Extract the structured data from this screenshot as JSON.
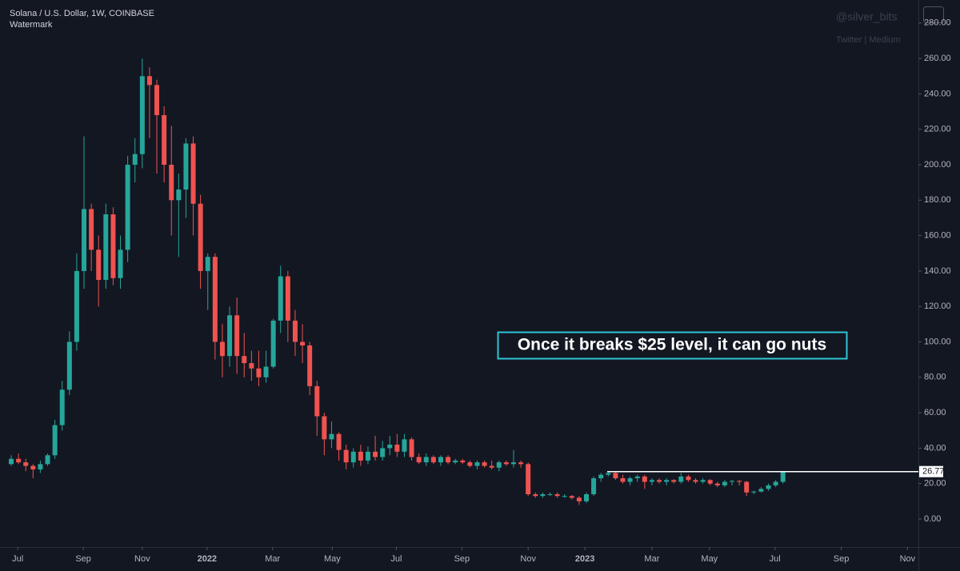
{
  "chart_data": {
    "type": "candlestick",
    "title": "Solana / U.S. Dollar, 1W, COINBASE",
    "subtitle": "Watermark",
    "watermark": "@silver_bits",
    "watermark_sub": "Twitter | Medium",
    "annotation": "Once it breaks $25 level, it can go nuts",
    "up_color": "#26a69a",
    "down_color": "#ef5350",
    "grid": false,
    "open": [
      31,
      34,
      32,
      30,
      28,
      31,
      36,
      53,
      73,
      100,
      140,
      175,
      152,
      135,
      172,
      136,
      152,
      200,
      206,
      250,
      245,
      228,
      200,
      180,
      186,
      212,
      178,
      140,
      148,
      100,
      92,
      115,
      92,
      88,
      85,
      80,
      86,
      112,
      137,
      112,
      100,
      98,
      75,
      58,
      45,
      48,
      39,
      32,
      38,
      33,
      38,
      35,
      40,
      42,
      38,
      45,
      35,
      32,
      35,
      32,
      35,
      32,
      33,
      32,
      30,
      32,
      30,
      29,
      32,
      31,
      32,
      31,
      14,
      13,
      14,
      14,
      13,
      13,
      12,
      10,
      14,
      23,
      25,
      26,
      23,
      21,
      23,
      24,
      21,
      22,
      21,
      22,
      21,
      24,
      22,
      21,
      22,
      20,
      19,
      21,
      21.5,
      21,
      15,
      15.5,
      17,
      19,
      21
    ],
    "high": [
      36,
      37,
      34,
      31,
      33,
      37,
      56,
      78,
      106,
      150,
      216,
      178,
      160,
      178,
      176,
      160,
      205,
      215,
      260,
      255,
      248,
      233,
      222,
      195,
      215,
      216,
      183,
      150,
      150,
      110,
      120,
      125,
      105,
      95,
      95,
      95,
      113,
      143,
      140,
      118,
      110,
      100,
      78,
      60,
      55,
      49,
      42,
      40,
      42,
      41,
      47,
      44,
      47,
      48,
      48,
      46,
      37,
      37,
      36,
      36,
      36,
      34,
      34,
      33,
      33,
      33,
      33,
      33,
      33,
      39,
      33,
      32,
      15,
      15,
      15,
      15,
      14,
      13.5,
      13,
      15,
      24,
      26,
      27,
      27,
      25,
      24,
      25,
      25,
      23,
      23,
      23,
      22.5,
      26,
      25,
      23,
      23,
      22.5,
      21,
      22,
      22,
      22,
      21.5,
      16,
      18,
      20,
      22,
      27
    ],
    "low": [
      30,
      31,
      27,
      23,
      26,
      30,
      34,
      50,
      70,
      95,
      130,
      140,
      120,
      130,
      132,
      130,
      145,
      190,
      198,
      215,
      195,
      190,
      160,
      148,
      170,
      160,
      130,
      118,
      90,
      80,
      86,
      82,
      80,
      78,
      75,
      77,
      85,
      105,
      100,
      92,
      88,
      70,
      47,
      36,
      40,
      33,
      28,
      29,
      30,
      31,
      33,
      33,
      36,
      35,
      35,
      33,
      31,
      30,
      31,
      30,
      31,
      31,
      31,
      29,
      28,
      29,
      28,
      27,
      30,
      29,
      29,
      13,
      12,
      12,
      13,
      12,
      12,
      11,
      8,
      9,
      13,
      21,
      24,
      22,
      20,
      19,
      21,
      17,
      19,
      20,
      19,
      20,
      20,
      21,
      20,
      20,
      19,
      18,
      18,
      19,
      19,
      13,
      14,
      15,
      16,
      18,
      20
    ],
    "close": [
      34,
      32,
      30,
      28,
      31,
      36,
      53,
      73,
      100,
      140,
      175,
      152,
      135,
      172,
      136,
      152,
      200,
      206,
      250,
      245,
      228,
      200,
      180,
      186,
      212,
      178,
      140,
      148,
      100,
      92,
      115,
      92,
      88,
      85,
      80,
      86,
      112,
      137,
      112,
      100,
      98,
      75,
      58,
      45,
      48,
      39,
      32,
      38,
      33,
      38,
      35,
      40,
      42,
      38,
      45,
      35,
      32,
      35,
      32,
      35,
      32,
      33,
      32,
      30,
      32,
      30,
      29,
      32,
      31,
      32,
      31,
      14,
      13,
      14,
      14,
      13,
      13,
      12,
      10,
      14,
      23,
      25,
      26,
      23,
      21,
      23,
      24,
      21,
      22,
      21,
      22,
      21,
      24,
      22,
      21,
      22,
      20,
      19,
      21,
      21.5,
      21,
      15,
      15.5,
      17,
      19,
      21,
      26.77
    ],
    "xlim": [
      -1.54,
      124.6
    ],
    "xticks": [
      {
        "value": 0.9,
        "label": "Jul"
      },
      {
        "value": 9.9,
        "label": "Sep"
      },
      {
        "value": 18.0,
        "label": "Nov"
      },
      {
        "value": 26.9,
        "label": "2022"
      },
      {
        "value": 35.9,
        "label": "Mar"
      },
      {
        "value": 44.1,
        "label": "May"
      },
      {
        "value": 52.9,
        "label": "Jul"
      },
      {
        "value": 61.9,
        "label": "Sep"
      },
      {
        "value": 71.0,
        "label": "Nov"
      },
      {
        "value": 78.8,
        "label": "2023"
      },
      {
        "value": 88.0,
        "label": "Mar"
      },
      {
        "value": 95.9,
        "label": "May"
      },
      {
        "value": 104.9,
        "label": "Jul"
      },
      {
        "value": 114.0,
        "label": "Sep"
      },
      {
        "value": 123.1,
        "label": "Nov"
      }
    ],
    "ylim": [
      -15.8,
      293
    ],
    "yticks": [
      {
        "value": 0,
        "label": "0.00"
      },
      {
        "value": 20,
        "label": "20.00"
      },
      {
        "value": 40,
        "label": "40.00"
      },
      {
        "value": 60,
        "label": "60.00"
      },
      {
        "value": 80,
        "label": "80.00"
      },
      {
        "value": 100,
        "label": "100.00"
      },
      {
        "value": 120,
        "label": "120.00"
      },
      {
        "value": 140,
        "label": "140.00"
      },
      {
        "value": 160,
        "label": "160.00"
      },
      {
        "value": 180,
        "label": "180.00"
      },
      {
        "value": 200,
        "label": "200.00"
      },
      {
        "value": 220,
        "label": "220.00"
      },
      {
        "value": 240,
        "label": "240.00"
      },
      {
        "value": 260,
        "label": "260.00"
      },
      {
        "value": 280,
        "label": "280.00"
      }
    ]
  }
}
